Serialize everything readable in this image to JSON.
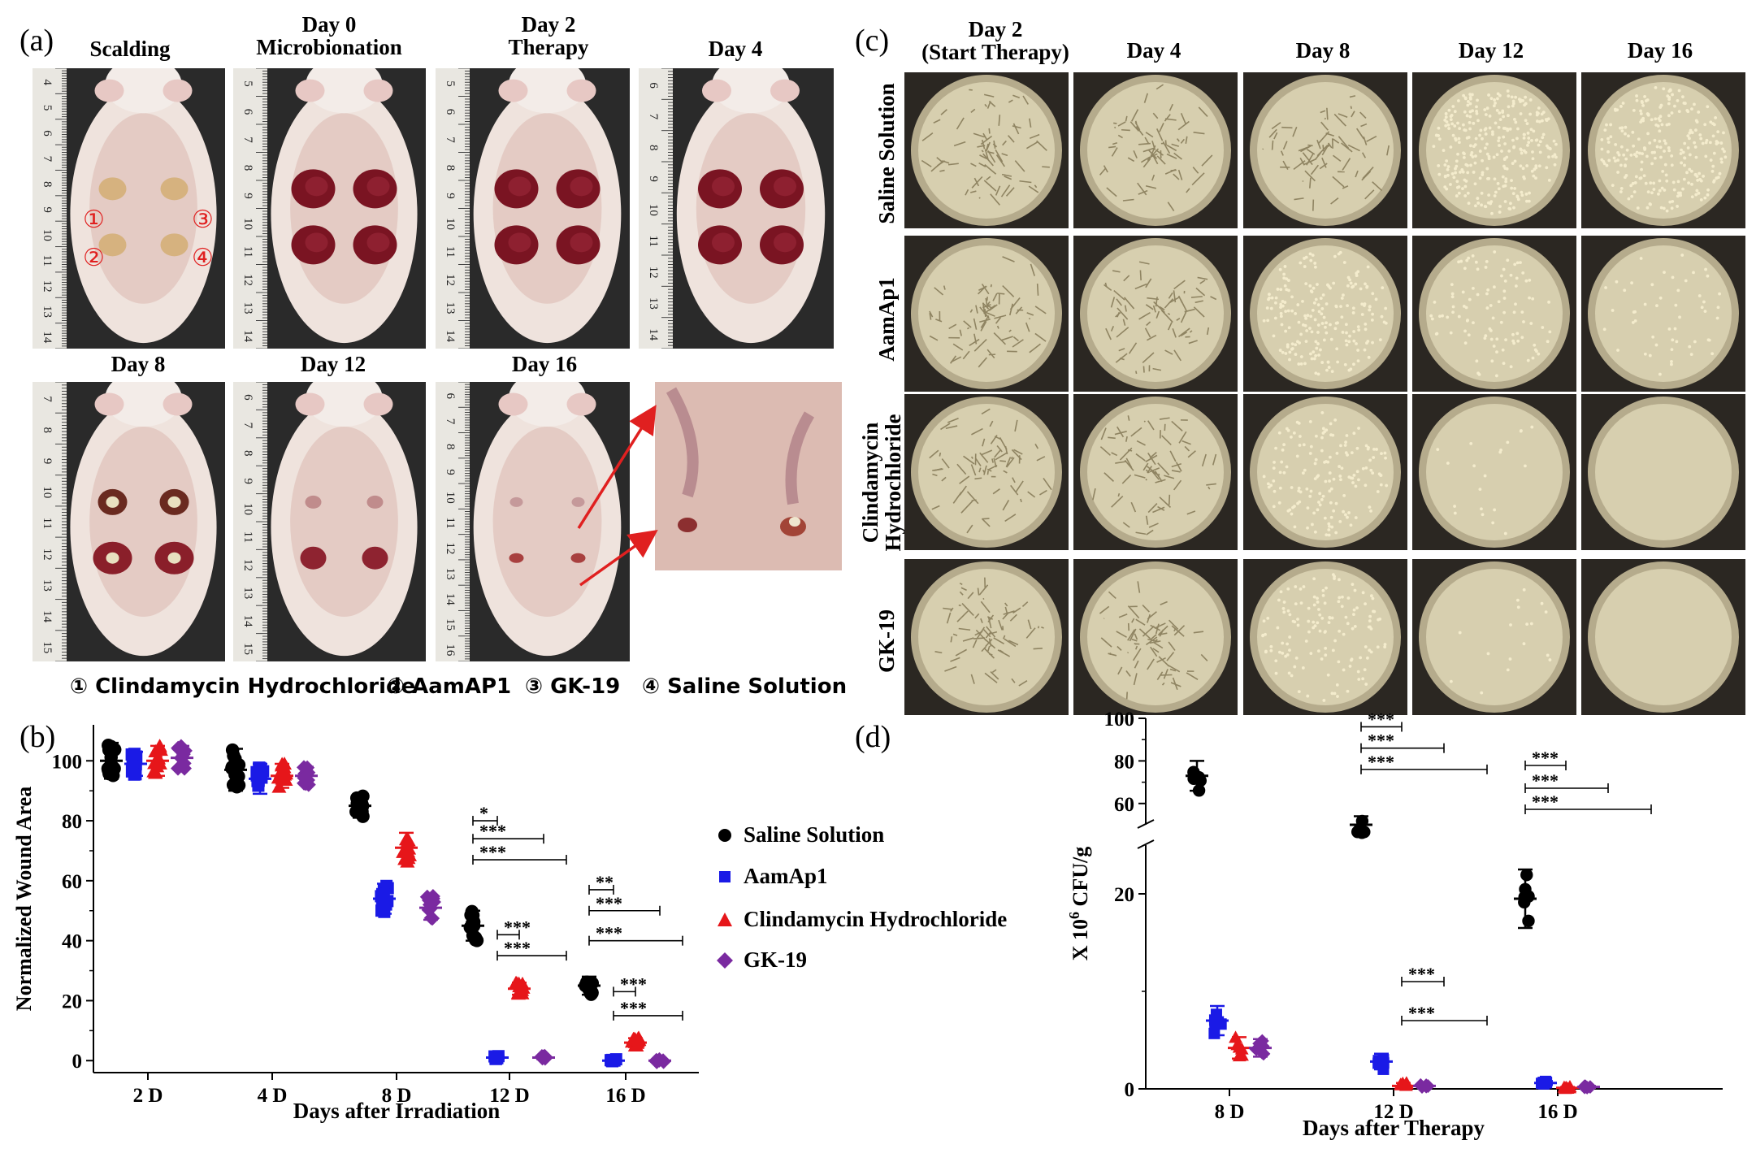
{
  "panel_labels": {
    "a": "(a)",
    "b": "(b)",
    "c": "(c)",
    "d": "(d)"
  },
  "panel_a": {
    "top_headers": [
      "Scalding",
      "Day 0\nMicrobionation",
      "Day 2\nTherapy",
      "Day 4"
    ],
    "bottom_headers": [
      "Day 8",
      "Day 12",
      "Day 16"
    ],
    "wound_markers": [
      "①",
      "③",
      "②",
      "④"
    ],
    "key_items": [
      "① Clindamycin Hydrochloride",
      "② AamAP1",
      "③ GK-19",
      "④ Saline Solution"
    ],
    "ruler_numbers": {
      "photo1": [
        "4",
        "5",
        "6",
        "7",
        "8",
        "9",
        "10",
        "11",
        "12",
        "13",
        "14"
      ],
      "photo2": [
        "5",
        "6",
        "7",
        "8",
        "9",
        "10",
        "11",
        "12",
        "13",
        "14"
      ],
      "photo3": [
        "5",
        "6",
        "7",
        "8",
        "9",
        "10",
        "11",
        "12",
        "13",
        "14"
      ],
      "photo4": [
        "6",
        "7",
        "8",
        "9",
        "10",
        "11",
        "12",
        "13",
        "14"
      ],
      "photo5": [
        "7",
        "8",
        "9",
        "10",
        "11",
        "12",
        "13",
        "14",
        "15"
      ],
      "photo6": [
        "6",
        "7",
        "8",
        "9",
        "10",
        "11",
        "12",
        "13",
        "14",
        "15"
      ],
      "photo7": [
        "6",
        "7",
        "8",
        "9",
        "10",
        "11",
        "12",
        "13",
        "14",
        "15",
        "16"
      ]
    },
    "colors": {
      "arrow": "#e02020",
      "marker": "#e02020"
    }
  },
  "panel_c": {
    "col_headers": [
      "Day 2\n(Start Therapy)",
      "Day 4",
      "Day 8",
      "Day 12",
      "Day 16"
    ],
    "row_labels": [
      "Saline Solution",
      "AamAp1",
      "Clindamycin\nHydrochloride",
      "GK-19"
    ],
    "colony_density": [
      [
        "lawn",
        "lawn",
        "lawn",
        0.9,
        0.75
      ],
      [
        "lawn",
        "lawn",
        0.6,
        0.3,
        0.15
      ],
      [
        "lawn",
        "lawn",
        0.45,
        0.06,
        0.0
      ],
      [
        "lawn",
        "lawn",
        0.4,
        0.05,
        0.0
      ]
    ]
  },
  "legend": {
    "items": [
      {
        "label": "Saline Solution",
        "color": "#000000",
        "symbol": "circle-icon"
      },
      {
        "label": "AamAp1",
        "color": "#1a1ae6",
        "symbol": "square-icon"
      },
      {
        "label": "Clindamycin Hydrochloride",
        "color": "#e6161a",
        "symbol": "triangle-icon"
      },
      {
        "label": "GK-19",
        "color": "#7a2aa0",
        "symbol": "diamond-icon"
      }
    ]
  },
  "chart_data": [
    {
      "id": "b",
      "type": "scatter",
      "title": "",
      "xlabel": "Days after Irradiation",
      "ylabel": "Normalized Wound Area",
      "categories": [
        "2 D",
        "4 D",
        "8 D",
        "12 D",
        "16 D"
      ],
      "yticks": [
        0,
        20,
        40,
        60,
        80,
        100
      ],
      "ylim": [
        -4,
        112
      ],
      "series": [
        {
          "name": "Saline Solution",
          "color": "#000000",
          "marker": "circle",
          "values": [
            100,
            97,
            85,
            45,
            25
          ],
          "err": [
            6,
            7,
            4,
            5,
            3
          ]
        },
        {
          "name": "AamAp1",
          "color": "#1a1ae6",
          "marker": "square",
          "values": [
            99,
            94,
            54,
            1,
            0
          ],
          "err": [
            4,
            5,
            5,
            0.5,
            0.5
          ]
        },
        {
          "name": "Clindamycin Hydrochloride",
          "color": "#e6161a",
          "marker": "triangle",
          "values": [
            100,
            95,
            71,
            24,
            6
          ],
          "err": [
            5,
            4,
            5,
            2,
            1.5
          ]
        },
        {
          "name": "GK-19",
          "color": "#7a2aa0",
          "marker": "diamond",
          "values": [
            101,
            95,
            51,
            1,
            0
          ],
          "err": [
            4,
            3,
            4,
            0.5,
            0.5
          ]
        }
      ],
      "significance": [
        {
          "group": "12 D",
          "label": "*"
        },
        {
          "group": "12 D",
          "label": "***"
        },
        {
          "group": "12 D",
          "label": "***"
        },
        {
          "group": "12 D",
          "label": "***"
        },
        {
          "group": "12 D",
          "label": "***"
        },
        {
          "group": "16 D",
          "label": "**"
        },
        {
          "group": "16 D",
          "label": "***"
        },
        {
          "group": "16 D",
          "label": "***"
        },
        {
          "group": "16 D",
          "label": "***"
        },
        {
          "group": "16 D",
          "label": "***"
        }
      ]
    },
    {
      "id": "d",
      "type": "scatter",
      "title": "",
      "xlabel": "Days after Therapy",
      "ylabel": "X 10^6 CFU/g",
      "ylabel_parts": {
        "pre": "X 10",
        "sup": "6",
        "post": " CFU/g"
      },
      "categories": [
        "8 D",
        "12 D",
        "16 D"
      ],
      "broken_axis": {
        "lower": [
          0,
          25
        ],
        "upper": [
          50,
          100
        ]
      },
      "yticks_lower": [
        0,
        20
      ],
      "yticks_upper": [
        60,
        80,
        100
      ],
      "series": [
        {
          "name": "Saline Solution",
          "color": "#000000",
          "marker": "circle",
          "values": [
            73,
            50,
            19.5
          ],
          "err": [
            7,
            4,
            3
          ]
        },
        {
          "name": "AamAp1",
          "color": "#1a1ae6",
          "marker": "square",
          "values": [
            7,
            2.8,
            0.6
          ],
          "err": [
            1.5,
            0.8,
            0.2
          ]
        },
        {
          "name": "Clindamycin Hydrochloride",
          "color": "#e6161a",
          "marker": "triangle",
          "values": [
            4.2,
            0.3,
            0.1
          ],
          "err": [
            1.1,
            0.3,
            0.1
          ]
        },
        {
          "name": "GK-19",
          "color": "#7a2aa0",
          "marker": "diamond",
          "values": [
            4.2,
            0.3,
            0.2
          ],
          "err": [
            0.9,
            0.1,
            0.1
          ]
        }
      ],
      "significance": [
        {
          "group": "12 D",
          "label": "***"
        },
        {
          "group": "12 D",
          "label": "***"
        },
        {
          "group": "12 D",
          "label": "***"
        },
        {
          "group": "12 D",
          "label": "***"
        },
        {
          "group": "12 D",
          "label": "***"
        },
        {
          "group": "16 D",
          "label": "***"
        },
        {
          "group": "16 D",
          "label": "***"
        },
        {
          "group": "16 D",
          "label": "***"
        }
      ]
    }
  ]
}
